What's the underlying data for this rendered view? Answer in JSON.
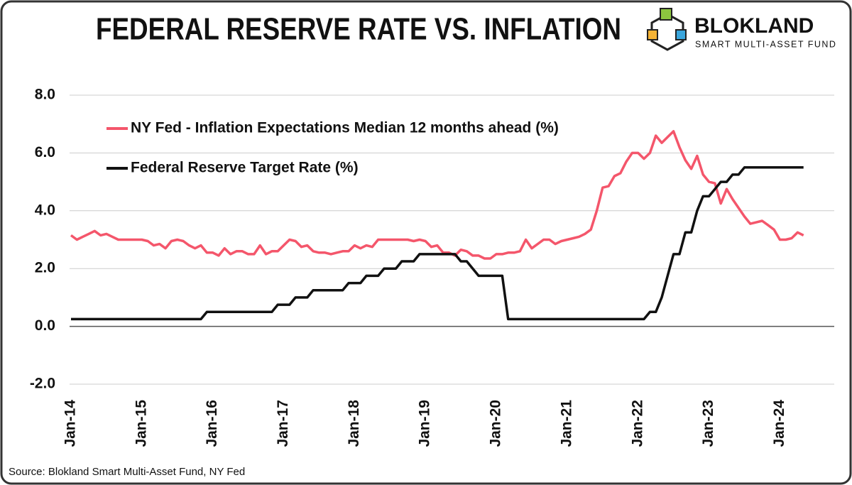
{
  "chart_data": {
    "type": "line",
    "title": "FEDERAL RESERVE RATE VS. INFLATION",
    "brand": "BLOKLAND",
    "brand_subtitle": "SMART MULTI-ASSET FUND",
    "source": "Source: Blokland Smart Multi-Asset Fund, NY Fed",
    "legend": "top-left",
    "grid": true,
    "ylim": [
      -2,
      8
    ],
    "yticks": [
      {
        "value": -2,
        "label": "-2.0"
      },
      {
        "value": 0,
        "label": "0.0"
      },
      {
        "value": 2,
        "label": "2.0"
      },
      {
        "value": 4,
        "label": "4.0"
      },
      {
        "value": 6,
        "label": "6.0"
      },
      {
        "value": 8,
        "label": "8.0"
      }
    ],
    "categories": [
      "Jan-14",
      null,
      null,
      null,
      null,
      null,
      null,
      null,
      null,
      null,
      null,
      null,
      "Jan-15",
      null,
      null,
      null,
      null,
      null,
      null,
      null,
      null,
      null,
      null,
      null,
      "Jan-16",
      null,
      null,
      null,
      null,
      null,
      null,
      null,
      null,
      null,
      null,
      null,
      "Jan-17",
      null,
      null,
      null,
      null,
      null,
      null,
      null,
      null,
      null,
      null,
      null,
      "Jan-18",
      null,
      null,
      null,
      null,
      null,
      null,
      null,
      null,
      null,
      null,
      null,
      "Jan-19",
      null,
      null,
      null,
      null,
      null,
      null,
      null,
      null,
      null,
      null,
      null,
      "Jan-20",
      null,
      null,
      null,
      null,
      null,
      null,
      null,
      null,
      null,
      null,
      null,
      "Jan-21",
      null,
      null,
      null,
      null,
      null,
      null,
      null,
      null,
      null,
      null,
      null,
      "Jan-22",
      null,
      null,
      null,
      null,
      null,
      null,
      null,
      null,
      null,
      null,
      null,
      "Jan-23",
      null,
      null,
      null,
      null,
      null,
      null,
      null,
      null,
      null,
      null,
      null,
      "Jan-24",
      null,
      null,
      null,
      null
    ],
    "series": [
      {
        "name": "NY Fed - Inflation Expectations Median 12 months ahead (%)",
        "color": "#f4566b",
        "values": [
          3.15,
          3.0,
          3.1,
          3.2,
          3.3,
          3.15,
          3.2,
          3.1,
          3.0,
          3.0,
          3.0,
          3.0,
          3.0,
          2.95,
          2.8,
          2.85,
          2.7,
          2.95,
          3.0,
          2.95,
          2.8,
          2.7,
          2.8,
          2.55,
          2.55,
          2.45,
          2.7,
          2.5,
          2.6,
          2.6,
          2.5,
          2.5,
          2.8,
          2.5,
          2.6,
          2.6,
          2.8,
          3.0,
          2.95,
          2.75,
          2.8,
          2.6,
          2.55,
          2.55,
          2.5,
          2.55,
          2.6,
          2.6,
          2.8,
          2.7,
          2.8,
          2.75,
          3.0,
          3.0,
          3.0,
          3.0,
          3.0,
          3.0,
          2.95,
          3.0,
          2.95,
          2.75,
          2.8,
          2.55,
          2.55,
          2.45,
          2.65,
          2.6,
          2.45,
          2.45,
          2.35,
          2.35,
          2.5,
          2.5,
          2.55,
          2.55,
          2.6,
          3.0,
          2.7,
          2.85,
          3.0,
          3.0,
          2.85,
          2.95,
          3.0,
          3.05,
          3.1,
          3.2,
          3.35,
          4.0,
          4.8,
          4.85,
          5.2,
          5.3,
          5.7,
          6.0,
          6.0,
          5.8,
          6.0,
          6.6,
          6.35,
          6.55,
          6.75,
          6.2,
          5.75,
          5.45,
          5.9,
          5.25,
          5.0,
          4.95,
          4.25,
          4.75,
          4.4,
          4.1,
          3.8,
          3.55,
          3.6,
          3.65,
          3.5,
          3.35,
          3.0,
          3.0,
          3.05,
          3.25,
          3.15
        ]
      },
      {
        "name": "Federal Reserve Target Rate (%)",
        "color": "#111111",
        "values": [
          0.25,
          0.25,
          0.25,
          0.25,
          0.25,
          0.25,
          0.25,
          0.25,
          0.25,
          0.25,
          0.25,
          0.25,
          0.25,
          0.25,
          0.25,
          0.25,
          0.25,
          0.25,
          0.25,
          0.25,
          0.25,
          0.25,
          0.25,
          0.5,
          0.5,
          0.5,
          0.5,
          0.5,
          0.5,
          0.5,
          0.5,
          0.5,
          0.5,
          0.5,
          0.5,
          0.75,
          0.75,
          0.75,
          1.0,
          1.0,
          1.0,
          1.25,
          1.25,
          1.25,
          1.25,
          1.25,
          1.25,
          1.5,
          1.5,
          1.5,
          1.75,
          1.75,
          1.75,
          2.0,
          2.0,
          2.0,
          2.25,
          2.25,
          2.25,
          2.5,
          2.5,
          2.5,
          2.5,
          2.5,
          2.5,
          2.5,
          2.25,
          2.25,
          2.0,
          1.75,
          1.75,
          1.75,
          1.75,
          1.75,
          0.25,
          0.25,
          0.25,
          0.25,
          0.25,
          0.25,
          0.25,
          0.25,
          0.25,
          0.25,
          0.25,
          0.25,
          0.25,
          0.25,
          0.25,
          0.25,
          0.25,
          0.25,
          0.25,
          0.25,
          0.25,
          0.25,
          0.25,
          0.25,
          0.5,
          0.5,
          1.0,
          1.75,
          2.5,
          2.5,
          3.25,
          3.25,
          4.0,
          4.5,
          4.5,
          4.75,
          5.0,
          5.0,
          5.25,
          5.25,
          5.5,
          5.5,
          5.5,
          5.5,
          5.5,
          5.5,
          5.5,
          5.5,
          5.5,
          5.5,
          5.5
        ]
      }
    ]
  }
}
